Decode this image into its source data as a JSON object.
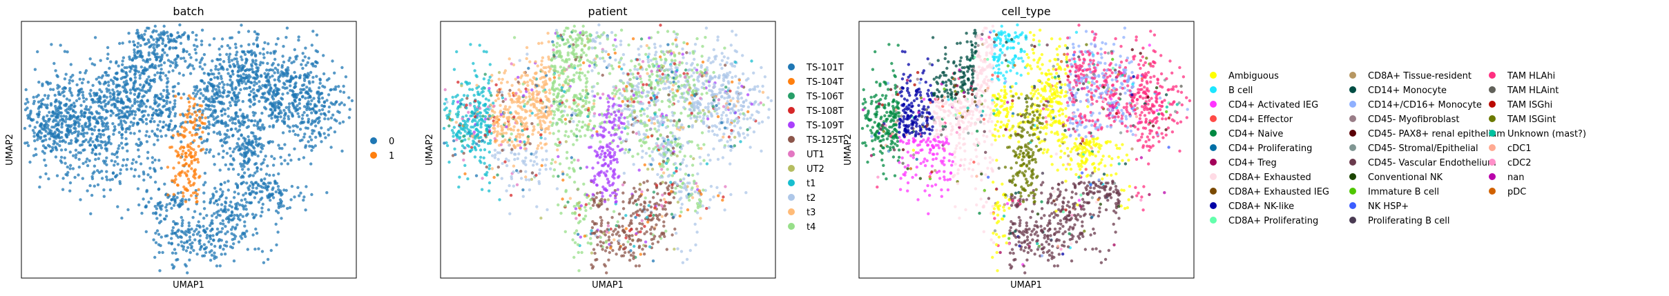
{
  "chart_data": [
    {
      "type": "scatter",
      "title": "batch",
      "xlabel": "UMAP1",
      "ylabel": "UMAP2",
      "legend": {
        "placement": "right",
        "entries": [
          {
            "label": "0",
            "color": "#1f77b4"
          },
          {
            "label": "1",
            "color": "#ff7f0e"
          }
        ]
      }
    },
    {
      "type": "scatter",
      "title": "patient",
      "xlabel": "UMAP1",
      "ylabel": "UMAP2",
      "legend": {
        "placement": "right",
        "entries": [
          {
            "label": "TS-101T",
            "color": "#1f77b4"
          },
          {
            "label": "TS-104T",
            "color": "#ff7f0e"
          },
          {
            "label": "TS-106T",
            "color": "#279e68"
          },
          {
            "label": "TS-108T",
            "color": "#d62728"
          },
          {
            "label": "TS-109T",
            "color": "#aa40fc"
          },
          {
            "label": "TS-125T",
            "color": "#8c564b"
          },
          {
            "label": "UT1",
            "color": "#e377c2"
          },
          {
            "label": "UT2",
            "color": "#b5bd61"
          },
          {
            "label": "t1",
            "color": "#17becf"
          },
          {
            "label": "t2",
            "color": "#aec7e8"
          },
          {
            "label": "t3",
            "color": "#ffbb78"
          },
          {
            "label": "t4",
            "color": "#98df8a"
          }
        ]
      }
    },
    {
      "type": "scatter",
      "title": "cell_type",
      "xlabel": "UMAP1",
      "ylabel": "UMAP2",
      "legend": {
        "placement": "right",
        "columns": 3,
        "entries": [
          {
            "label": "Ambiguous",
            "color": "#ffff00"
          },
          {
            "label": "B cell",
            "color": "#1ce6ff"
          },
          {
            "label": "CD4+ Activated IEG",
            "color": "#ff34ff"
          },
          {
            "label": "CD4+ Effector",
            "color": "#ff4a46"
          },
          {
            "label": "CD4+ Naive",
            "color": "#008941"
          },
          {
            "label": "CD4+ Proliferating",
            "color": "#006fa6"
          },
          {
            "label": "CD4+ Treg",
            "color": "#a30059"
          },
          {
            "label": "CD8A+ Exhausted",
            "color": "#ffdbe5"
          },
          {
            "label": "CD8A+ Exhausted IEG",
            "color": "#7a4900"
          },
          {
            "label": "CD8A+ NK-like",
            "color": "#0000a6"
          },
          {
            "label": "CD8A+ Proliferating",
            "color": "#63ffac"
          },
          {
            "label": "CD8A+ Tissue-resident",
            "color": "#b79762"
          },
          {
            "label": "CD14+ Monocyte",
            "color": "#004d43"
          },
          {
            "label": "CD14+/CD16+ Monocyte",
            "color": "#8fb0ff"
          },
          {
            "label": "CD45- Myofibroblast",
            "color": "#997d87"
          },
          {
            "label": "CD45- PAX8+ renal epithelium",
            "color": "#5a0007"
          },
          {
            "label": "CD45- Stromal/Epithelial",
            "color": "#809693"
          },
          {
            "label": "CD45- Vascular Endothelium",
            "color": "#6a3a4c"
          },
          {
            "label": "Conventional NK",
            "color": "#1b4400"
          },
          {
            "label": "Immature B cell",
            "color": "#4fc601"
          },
          {
            "label": "NK HSP+",
            "color": "#3b5dff"
          },
          {
            "label": "Proliferating B cell",
            "color": "#4a3b53"
          },
          {
            "label": "TAM HLAhi",
            "color": "#ff2f80"
          },
          {
            "label": "TAM HLAint",
            "color": "#61615a"
          },
          {
            "label": "TAM ISGhi",
            "color": "#ba0900"
          },
          {
            "label": "TAM ISGint",
            "color": "#6b7900"
          },
          {
            "label": "Unknown (mast?)",
            "color": "#00c2a0"
          },
          {
            "label": "cDC1",
            "color": "#ffaa92"
          },
          {
            "label": "cDC2",
            "color": "#ff90c9"
          },
          {
            "label": "nan",
            "color": "#b903aa"
          },
          {
            "label": "pDC",
            "color": "#d16100"
          }
        ]
      }
    }
  ]
}
